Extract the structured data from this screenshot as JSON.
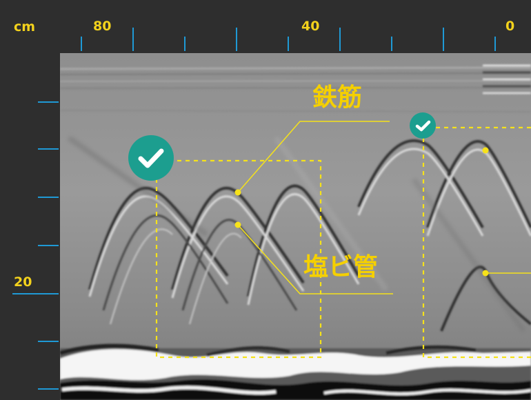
{
  "scale": {
    "unit": "cm",
    "top_ticks": [
      "80",
      "40",
      "0"
    ],
    "left_ticks": [
      "20"
    ]
  },
  "annotations": {
    "rebar_label": "鉄筋",
    "pvc_label": "塩ビ管"
  },
  "icons": {
    "check_large": "check-circle-icon",
    "check_small": "check-circle-icon"
  },
  "colors": {
    "ruler_tick": "#1f9ad6",
    "label_yellow": "#f5d000",
    "marker": "#f7e21a",
    "check_bg": "#1c9e8f",
    "frame": "#2e2e2e"
  }
}
